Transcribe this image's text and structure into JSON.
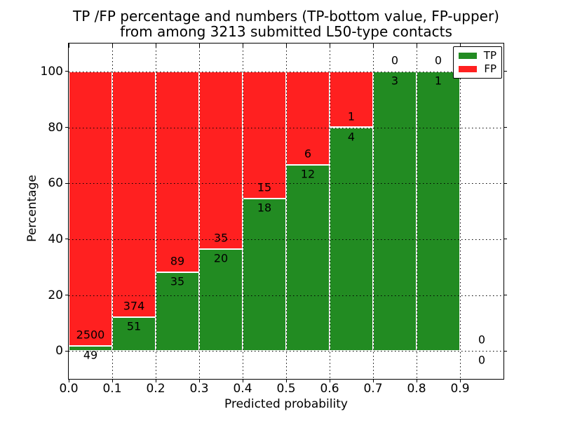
{
  "chart_data": {
    "type": "bar",
    "stacked": true,
    "units": "percent",
    "title": "TP /FP percentage and numbers (TP-bottom value, FP-upper)",
    "subtitle": "from among 3213 submitted L50-type contacts",
    "xlabel": "Predicted probability",
    "ylabel": "Percentage",
    "total_contacts_in_title": "3213",
    "bin_width": 0.1,
    "bin_starts": [
      0.0,
      0.1,
      0.2,
      0.3,
      0.4,
      0.5,
      0.6,
      0.7,
      0.8,
      0.9
    ],
    "series": [
      {
        "name": "TP",
        "color": "#228b22",
        "counts": [
          49,
          51,
          35,
          20,
          18,
          12,
          4,
          3,
          1,
          0
        ]
      },
      {
        "name": "FP",
        "color": "#ff2020",
        "counts": [
          2500,
          374,
          89,
          35,
          15,
          6,
          1,
          0,
          0,
          0
        ]
      }
    ],
    "tp_percent_of_bin": [
      1.9,
      12.0,
      28.2,
      36.4,
      54.5,
      66.7,
      80.0,
      100.0,
      100.0,
      0.0
    ],
    "xticks": [
      "0.0",
      "0.1",
      "0.2",
      "0.3",
      "0.4",
      "0.5",
      "0.6",
      "0.7",
      "0.8",
      "0.9"
    ],
    "yticks": [
      "0",
      "20",
      "40",
      "60",
      "80",
      "100"
    ],
    "xlim": [
      0,
      1.0
    ],
    "ylim": [
      -10,
      110
    ],
    "grid": true,
    "grid_style": "dotted",
    "axis_color": "#000000",
    "background": "#ffffff",
    "legend": {
      "position": "upper right",
      "entries": [
        "TP",
        "FP"
      ]
    }
  }
}
